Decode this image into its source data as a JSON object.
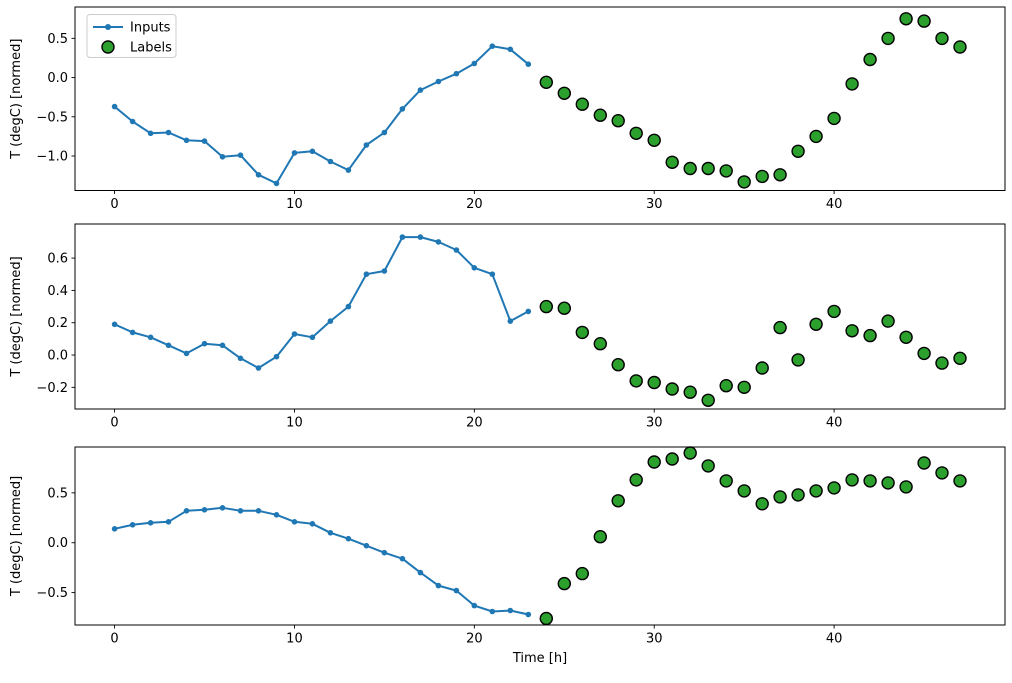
{
  "figure": {
    "xlabel": "Time [h]",
    "ylabel": "T (degC) [normed]"
  },
  "legend": {
    "position": "upper-left",
    "entries": [
      {
        "label": "Inputs",
        "marker": "line-with-dot"
      },
      {
        "label": "Labels",
        "marker": "circle"
      }
    ]
  },
  "colors": {
    "inputs_line": "#1f77b4",
    "labels_fill": "#2ca02c",
    "labels_edge": "#000000",
    "axes_edge": "#000000",
    "legend_border": "#cccccc",
    "legend_fill": "rgba(255,255,255,0.8)",
    "text": "#000000"
  },
  "chart_data": [
    {
      "type": "line",
      "title": "",
      "xlabel": "",
      "ylabel": "T (degC) [normed]",
      "grid": false,
      "legend": true,
      "xlim": [
        -2.2,
        49.5
      ],
      "ylim": [
        -1.44,
        0.9
      ],
      "xticks": [
        0,
        10,
        20,
        30,
        40
      ],
      "xtick_labels": [
        "0",
        "10",
        "20",
        "30",
        "40"
      ],
      "yticks": [
        0.5,
        0.0,
        -0.5,
        -1.0
      ],
      "ytick_labels": [
        "0.5",
        "0.0",
        "−0.5",
        "−1.0"
      ],
      "series": [
        {
          "name": "Inputs",
          "type": "line",
          "x": [
            0,
            1,
            2,
            3,
            4,
            5,
            6,
            7,
            8,
            9,
            10,
            11,
            12,
            13,
            14,
            15,
            16,
            17,
            18,
            19,
            20,
            21,
            22,
            23
          ],
          "values": [
            -0.37,
            -0.56,
            -0.71,
            -0.7,
            -0.8,
            -0.81,
            -1.01,
            -0.99,
            -1.24,
            -1.35,
            -0.96,
            -0.94,
            -1.07,
            -1.18,
            -0.86,
            -0.7,
            -0.4,
            -0.16,
            -0.05,
            0.05,
            0.18,
            0.4,
            0.36,
            0.17
          ]
        },
        {
          "name": "Labels",
          "type": "scatter",
          "x": [
            24,
            25,
            26,
            27,
            28,
            29,
            30,
            31,
            32,
            33,
            34,
            35,
            36,
            37,
            38,
            39,
            40,
            41,
            42,
            43,
            44,
            45,
            46,
            47
          ],
          "values": [
            -0.06,
            -0.2,
            -0.34,
            -0.48,
            -0.55,
            -0.71,
            -0.8,
            -1.08,
            -1.16,
            -1.16,
            -1.19,
            -1.33,
            -1.26,
            -1.24,
            -0.94,
            -0.75,
            -0.52,
            -0.08,
            0.23,
            0.5,
            0.75,
            0.72,
            0.5,
            0.39
          ]
        }
      ]
    },
    {
      "type": "line",
      "title": "",
      "xlabel": "",
      "ylabel": "T (degC) [normed]",
      "grid": false,
      "legend": false,
      "xlim": [
        -2.2,
        49.5
      ],
      "ylim": [
        -0.334,
        0.811
      ],
      "xticks": [
        0,
        10,
        20,
        30,
        40
      ],
      "xtick_labels": [
        "0",
        "10",
        "20",
        "30",
        "40"
      ],
      "yticks": [
        0.6,
        0.4,
        0.2,
        0.0,
        -0.2
      ],
      "ytick_labels": [
        "0.6",
        "0.4",
        "0.2",
        "0.0",
        "−0.2"
      ],
      "series": [
        {
          "name": "Inputs",
          "type": "line",
          "x": [
            0,
            1,
            2,
            3,
            4,
            5,
            6,
            7,
            8,
            9,
            10,
            11,
            12,
            13,
            14,
            15,
            16,
            17,
            18,
            19,
            20,
            21,
            22,
            23
          ],
          "values": [
            0.19,
            0.14,
            0.11,
            0.06,
            0.01,
            0.07,
            0.06,
            -0.02,
            -0.08,
            -0.01,
            0.13,
            0.11,
            0.21,
            0.3,
            0.5,
            0.52,
            0.73,
            0.73,
            0.7,
            0.65,
            0.54,
            0.5,
            0.21,
            0.27
          ]
        },
        {
          "name": "Labels",
          "type": "scatter",
          "x": [
            24,
            25,
            26,
            27,
            28,
            29,
            30,
            31,
            32,
            33,
            34,
            35,
            36,
            37,
            38,
            39,
            40,
            41,
            42,
            43,
            44,
            45,
            46,
            47
          ],
          "values": [
            0.3,
            0.29,
            0.14,
            0.07,
            -0.06,
            -0.16,
            -0.17,
            -0.21,
            -0.23,
            -0.28,
            -0.19,
            -0.2,
            -0.08,
            0.17,
            -0.03,
            0.19,
            0.27,
            0.15,
            0.12,
            0.21,
            0.11,
            0.01,
            -0.05,
            -0.02
          ]
        }
      ]
    },
    {
      "type": "line",
      "title": "",
      "xlabel": "Time [h]",
      "ylabel": "T (degC) [normed]",
      "grid": false,
      "legend": false,
      "xlim": [
        -2.2,
        49.5
      ],
      "ylim": [
        -0.825,
        0.96
      ],
      "xticks": [
        0,
        10,
        20,
        30,
        40
      ],
      "xtick_labels": [
        "0",
        "10",
        "20",
        "30",
        "40"
      ],
      "yticks": [
        0.5,
        0.0,
        -0.5
      ],
      "ytick_labels": [
        "0.5",
        "0.0",
        "−0.5"
      ],
      "series": [
        {
          "name": "Inputs",
          "type": "line",
          "x": [
            0,
            1,
            2,
            3,
            4,
            5,
            6,
            7,
            8,
            9,
            10,
            11,
            12,
            13,
            14,
            15,
            16,
            17,
            18,
            19,
            20,
            21,
            22,
            23
          ],
          "values": [
            0.14,
            0.18,
            0.2,
            0.21,
            0.32,
            0.33,
            0.35,
            0.32,
            0.32,
            0.28,
            0.21,
            0.19,
            0.1,
            0.04,
            -0.03,
            -0.1,
            -0.16,
            -0.3,
            -0.43,
            -0.48,
            -0.63,
            -0.69,
            -0.68,
            -0.72
          ]
        },
        {
          "name": "Labels",
          "type": "scatter",
          "x": [
            24,
            25,
            26,
            27,
            28,
            29,
            30,
            31,
            32,
            33,
            34,
            35,
            36,
            37,
            38,
            39,
            40,
            41,
            42,
            43,
            44,
            45,
            46,
            47
          ],
          "values": [
            -0.76,
            -0.41,
            -0.31,
            0.06,
            0.42,
            0.63,
            0.81,
            0.84,
            0.9,
            0.77,
            0.62,
            0.52,
            0.39,
            0.46,
            0.48,
            0.52,
            0.55,
            0.63,
            0.62,
            0.6,
            0.56,
            0.8,
            0.7,
            0.62
          ]
        }
      ]
    }
  ]
}
